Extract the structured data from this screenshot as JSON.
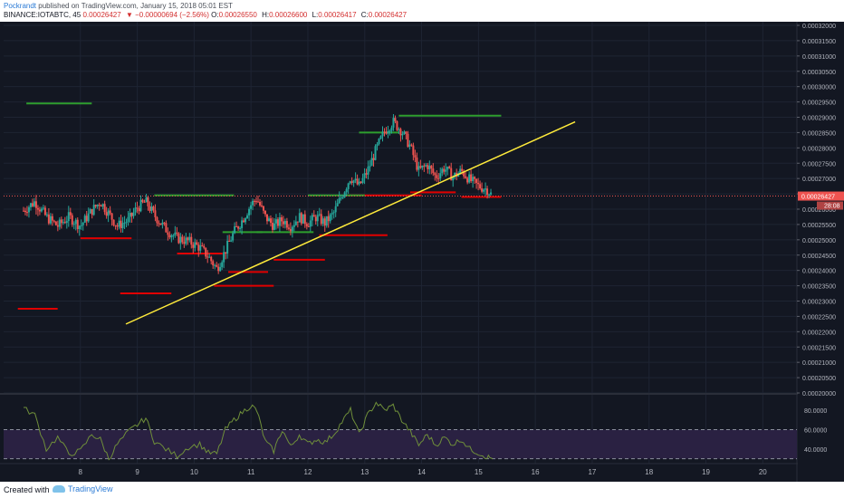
{
  "header": {
    "author": "Pockrandt",
    "published_text": " published on TradingView.com, January 15, 2018 05:01 EST",
    "symbol": "BINANCE:IOTABTC, 45",
    "last_price": "0.00026427",
    "change": "▼ −0.00000694 (−2.56%)",
    "open_label": "O:",
    "open_value": "0.00026550",
    "high_label": "H:",
    "high_value": "0.00026600",
    "low_label": "L:",
    "low_value": "0.00026417",
    "close_label": "C:",
    "close_value": "0.00026427"
  },
  "price_axis": {
    "ticks": [
      "0.00032000",
      "0.00031500",
      "0.00031000",
      "0.00030500",
      "0.00030000",
      "0.00029500",
      "0.00029000",
      "0.00028500",
      "0.00028000",
      "0.00027500",
      "0.00027000",
      "0.00026500",
      "0.00026000",
      "0.00025500",
      "0.00025000",
      "0.00024500",
      "0.00024000",
      "0.00023500",
      "0.00023000",
      "0.00022500",
      "0.00022000",
      "0.00021500",
      "0.00021000",
      "0.00020500",
      "0.00020000"
    ],
    "current_label": "0.00026427",
    "countdown_label": "28:08"
  },
  "time_axis": {
    "labels": [
      "8",
      "9",
      "10",
      "11",
      "12",
      "13",
      "14",
      "15",
      "16",
      "17",
      "18",
      "19",
      "20"
    ]
  },
  "rsi_axis": {
    "ticks": [
      "80.0000",
      "60.0000",
      "40.0000"
    ]
  },
  "footer": {
    "created_with": "Created with",
    "brand": "TradingView"
  },
  "colors": {
    "background": "#131722",
    "up": "#26a69a",
    "down": "#ef5350",
    "trendline": "#ffeb3b",
    "support_red": "#e00000",
    "resistance_green": "#2e9e2e",
    "rsi_line": "#6f8f3a",
    "rsi_band": "#2a2142",
    "current_price_tag": "#ef5350"
  },
  "chart_data": {
    "type": "candlestick",
    "symbol": "BINANCE:IOTABTC",
    "timeframe": "45",
    "x_labels": [
      "8",
      "9",
      "10",
      "11",
      "12",
      "13",
      "14",
      "15",
      "16",
      "17",
      "18",
      "19",
      "20"
    ],
    "ylim": [
      0.0002,
      0.00032
    ],
    "current_price": 0.00026427,
    "close_path": [
      [
        7.0,
        0.0002595
      ],
      [
        7.2,
        0.0002625
      ],
      [
        7.4,
        0.0002575
      ],
      [
        7.6,
        0.0002545
      ],
      [
        7.8,
        0.0002575
      ],
      [
        8.0,
        0.0002545
      ],
      [
        8.2,
        0.0002595
      ],
      [
        8.35,
        0.0002625
      ],
      [
        8.5,
        0.0002585
      ],
      [
        8.65,
        0.0002545
      ],
      [
        8.85,
        0.0002565
      ],
      [
        9.0,
        0.0002605
      ],
      [
        9.15,
        0.0002625
      ],
      [
        9.3,
        0.000258
      ],
      [
        9.5,
        0.0002535
      ],
      [
        9.7,
        0.0002505
      ],
      [
        9.9,
        0.0002495
      ],
      [
        10.1,
        0.0002475
      ],
      [
        10.25,
        0.0002445
      ],
      [
        10.4,
        0.0002405
      ],
      [
        10.55,
        0.0002465
      ],
      [
        10.7,
        0.0002525
      ],
      [
        10.85,
        0.0002565
      ],
      [
        11.0,
        0.0002615
      ],
      [
        11.1,
        0.0002635
      ],
      [
        11.25,
        0.0002575
      ],
      [
        11.4,
        0.0002545
      ],
      [
        11.55,
        0.0002565
      ],
      [
        11.7,
        0.0002545
      ],
      [
        11.85,
        0.0002575
      ],
      [
        12.0,
        0.0002555
      ],
      [
        12.15,
        0.0002575
      ],
      [
        12.3,
        0.0002555
      ],
      [
        12.45,
        0.0002585
      ],
      [
        12.6,
        0.0002645
      ],
      [
        12.75,
        0.0002705
      ],
      [
        12.9,
        0.0002675
      ],
      [
        13.05,
        0.0002725
      ],
      [
        13.2,
        0.0002795
      ],
      [
        13.35,
        0.0002855
      ],
      [
        13.5,
        0.0002885
      ],
      [
        13.65,
        0.0002855
      ],
      [
        13.8,
        0.0002805
      ],
      [
        13.95,
        0.0002725
      ],
      [
        14.1,
        0.0002745
      ],
      [
        14.25,
        0.0002705
      ],
      [
        14.4,
        0.0002735
      ],
      [
        14.55,
        0.0002705
      ],
      [
        14.7,
        0.0002725
      ],
      [
        14.85,
        0.0002695
      ],
      [
        15.0,
        0.0002675
      ],
      [
        15.15,
        0.0002665
      ],
      [
        15.25,
        0.0002642
      ]
    ],
    "trendline": {
      "from": [
        8.8,
        0.0002225
      ],
      "to": [
        16.7,
        0.0002885
      ]
    },
    "horizontal_levels_support": [
      {
        "from": 6.9,
        "to": 7.6,
        "y": 0.0002275
      },
      {
        "from": 8.0,
        "to": 8.9,
        "y": 0.0002505
      },
      {
        "from": 8.7,
        "to": 9.6,
        "y": 0.0002325
      },
      {
        "from": 9.7,
        "to": 10.5,
        "y": 0.0002455
      },
      {
        "from": 10.35,
        "to": 11.4,
        "y": 0.000235
      },
      {
        "from": 10.6,
        "to": 11.3,
        "y": 0.0002395
      },
      {
        "from": 11.4,
        "to": 12.3,
        "y": 0.0002435
      },
      {
        "from": 12.2,
        "to": 13.4,
        "y": 0.0002515
      },
      {
        "from": 12.7,
        "to": 14.0,
        "y": 0.0002645
      },
      {
        "from": 13.8,
        "to": 14.6,
        "y": 0.0002655
      },
      {
        "from": 14.7,
        "to": 15.4,
        "y": 0.000264
      }
    ],
    "horizontal_levels_resistance": [
      {
        "from": 7.05,
        "to": 8.2,
        "y": 0.0002945
      },
      {
        "from": 9.3,
        "to": 10.7,
        "y": 0.0002645
      },
      {
        "from": 10.5,
        "to": 11.2,
        "y": 0.0002525
      },
      {
        "from": 11.1,
        "to": 12.1,
        "y": 0.0002525
      },
      {
        "from": 12.0,
        "to": 13.0,
        "y": 0.0002645
      },
      {
        "from": 12.9,
        "to": 13.6,
        "y": 0.000285
      },
      {
        "from": 13.6,
        "to": 15.4,
        "y": 0.0002905
      }
    ],
    "rsi": {
      "ylim": [
        25,
        95
      ],
      "overbought": 60,
      "oversold": 30,
      "values": [
        [
          7.0,
          82
        ],
        [
          7.2,
          75
        ],
        [
          7.4,
          40
        ],
        [
          7.6,
          52
        ],
        [
          7.8,
          35
        ],
        [
          8.0,
          38
        ],
        [
          8.2,
          55
        ],
        [
          8.35,
          50
        ],
        [
          8.5,
          30
        ],
        [
          8.65,
          45
        ],
        [
          8.85,
          58
        ],
        [
          9.0,
          65
        ],
        [
          9.15,
          72
        ],
        [
          9.3,
          48
        ],
        [
          9.5,
          40
        ],
        [
          9.7,
          33
        ],
        [
          9.9,
          42
        ],
        [
          10.1,
          45
        ],
        [
          10.25,
          36
        ],
        [
          10.4,
          35
        ],
        [
          10.55,
          60
        ],
        [
          10.7,
          70
        ],
        [
          10.85,
          78
        ],
        [
          11.0,
          85
        ],
        [
          11.1,
          80
        ],
        [
          11.25,
          48
        ],
        [
          11.4,
          38
        ],
        [
          11.55,
          60
        ],
        [
          11.7,
          42
        ],
        [
          11.85,
          55
        ],
        [
          12.0,
          45
        ],
        [
          12.15,
          50
        ],
        [
          12.3,
          47
        ],
        [
          12.45,
          55
        ],
        [
          12.6,
          68
        ],
        [
          12.75,
          80
        ],
        [
          12.9,
          55
        ],
        [
          13.05,
          75
        ],
        [
          13.2,
          88
        ],
        [
          13.35,
          80
        ],
        [
          13.5,
          85
        ],
        [
          13.65,
          70
        ],
        [
          13.8,
          58
        ],
        [
          13.95,
          44
        ],
        [
          14.1,
          55
        ],
        [
          14.25,
          44
        ],
        [
          14.4,
          52
        ],
        [
          14.55,
          45
        ],
        [
          14.7,
          50
        ],
        [
          14.85,
          40
        ],
        [
          15.0,
          36
        ],
        [
          15.15,
          32
        ],
        [
          15.25,
          30
        ]
      ]
    }
  }
}
